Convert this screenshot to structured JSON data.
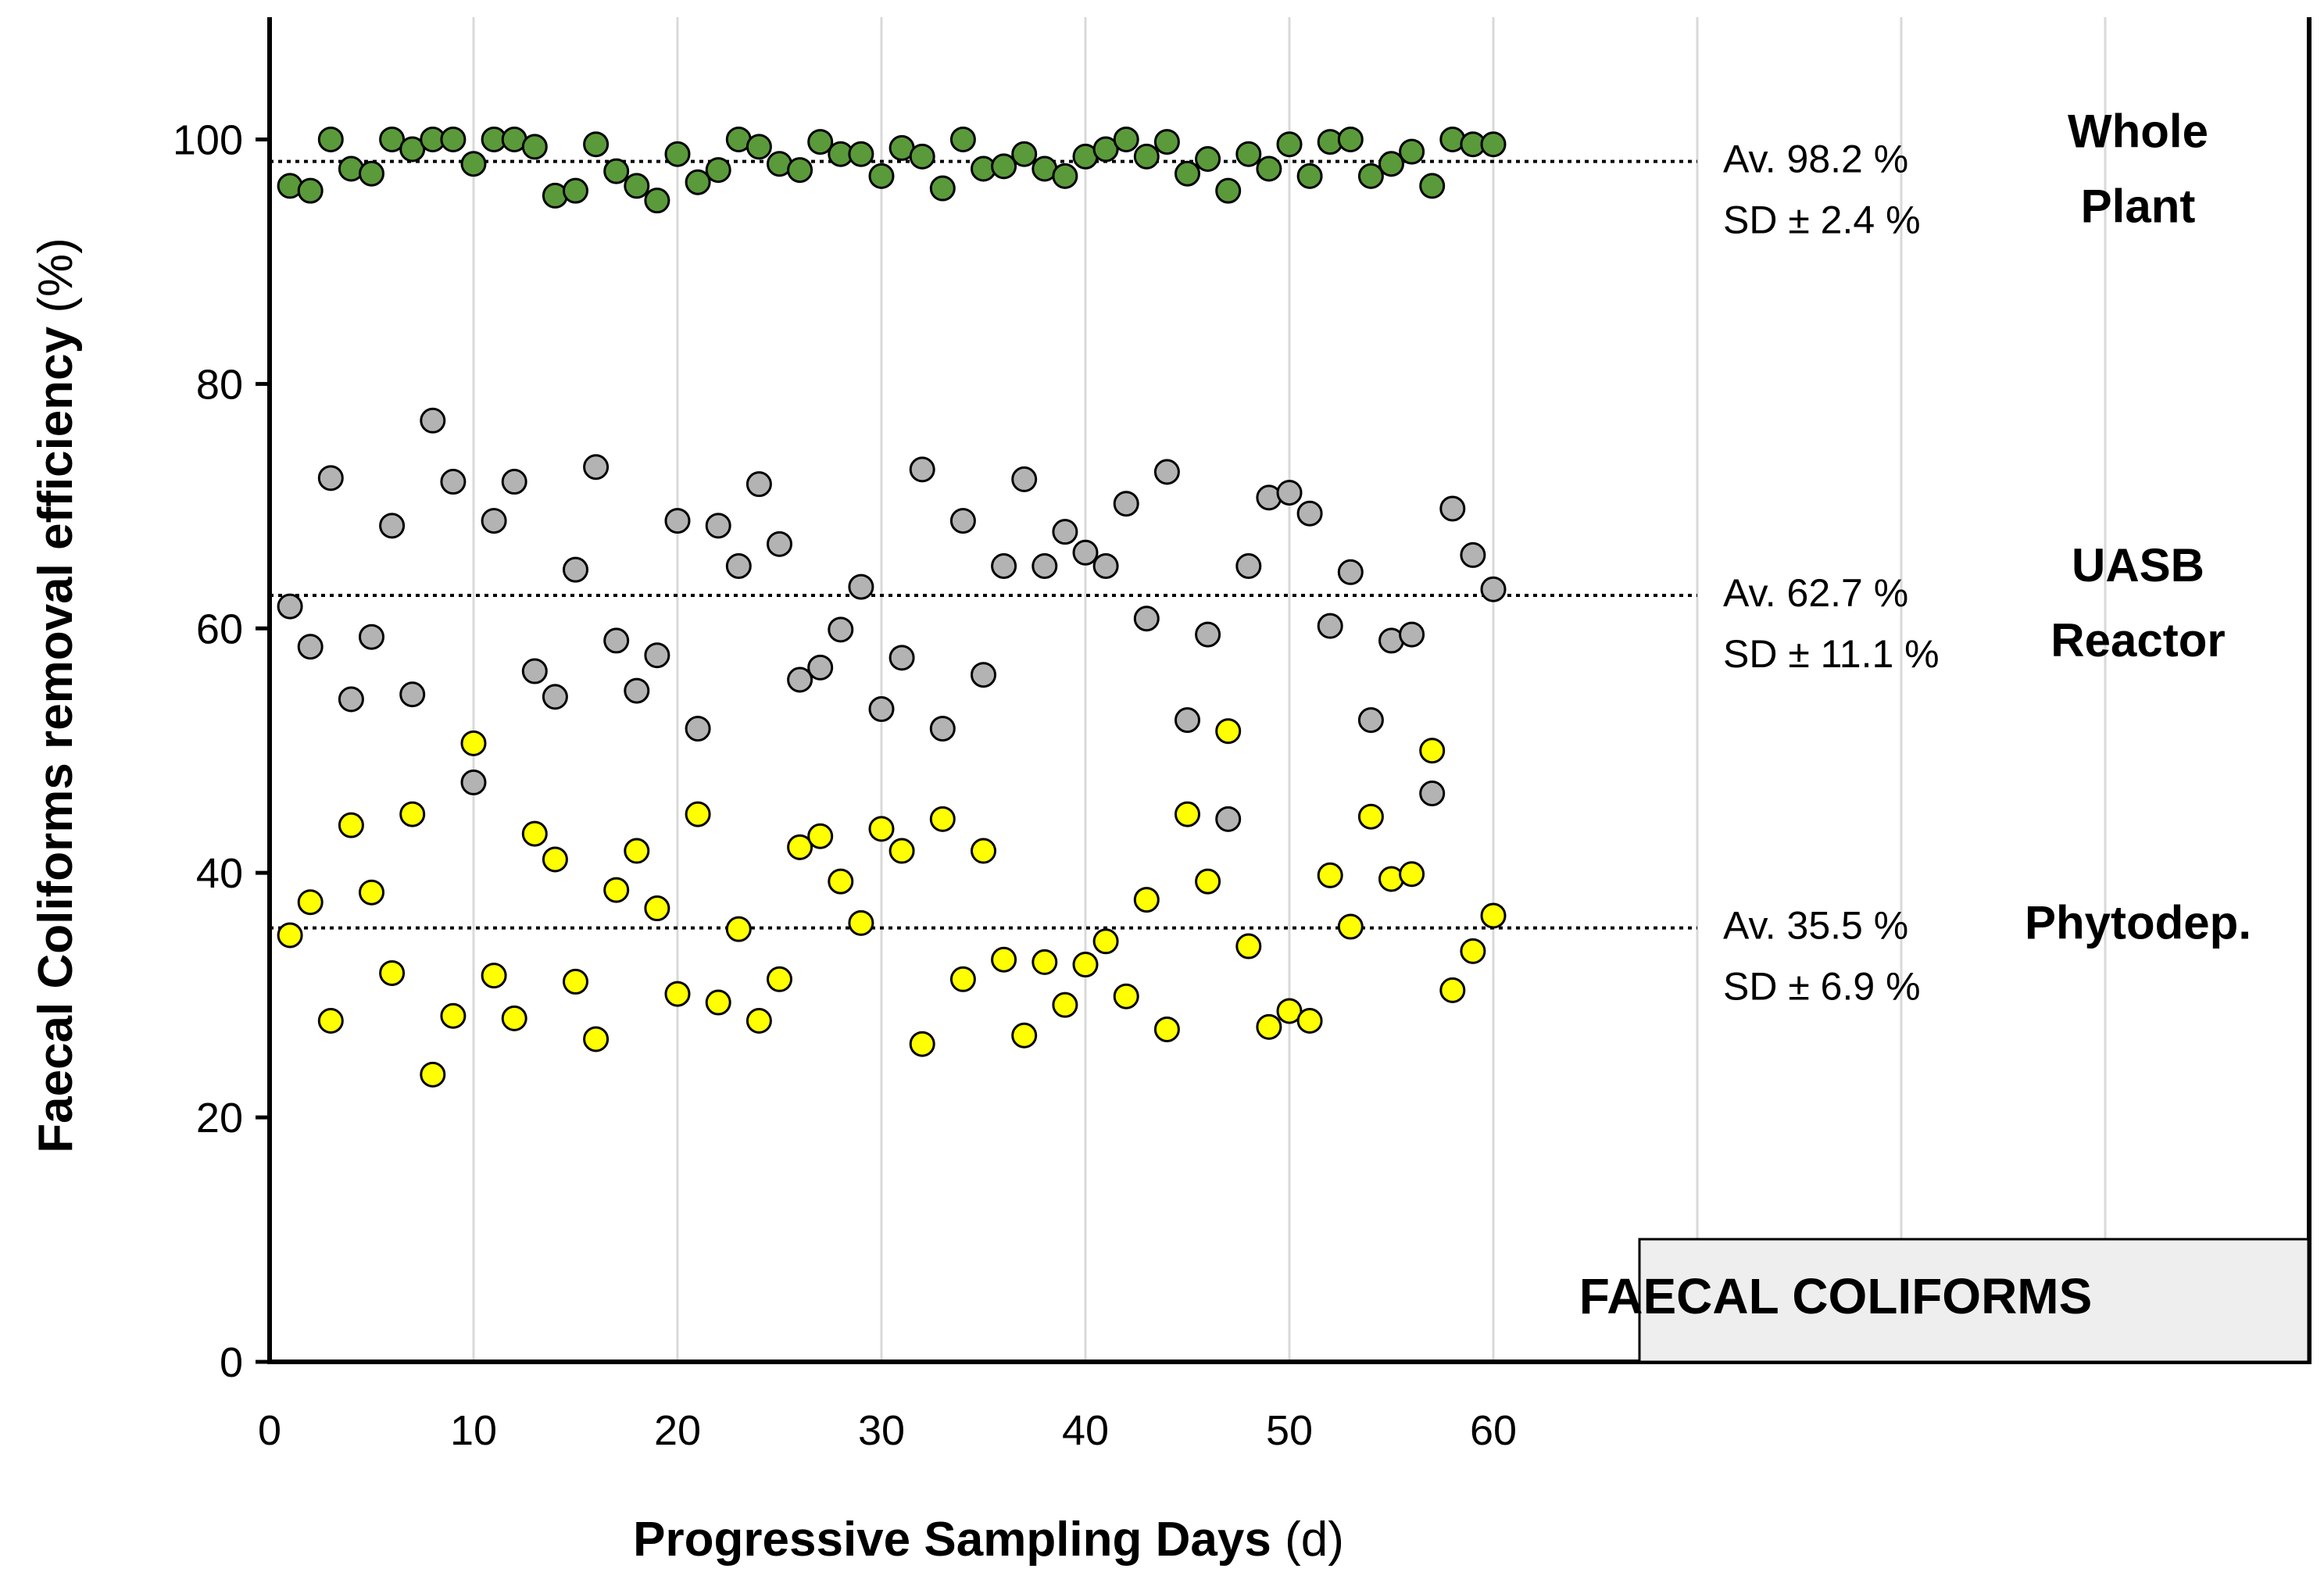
{
  "chart_data": {
    "type": "scatter",
    "title": "FAECAL COLIFORMS",
    "xlabel": "Progressive Sampling Days",
    "xlabel_unit": "(d)",
    "ylabel": "Faecal Coliforms removal efficiency",
    "ylabel_unit": "(%)",
    "xlim": [
      0,
      100
    ],
    "ylim": [
      0,
      110
    ],
    "x_ticks": [
      0,
      10,
      20,
      30,
      40,
      50,
      60
    ],
    "x_gridlines": [
      0,
      10,
      20,
      30,
      40,
      50,
      60,
      70,
      80,
      90,
      100
    ],
    "y_ticks": [
      0,
      20,
      40,
      60,
      80,
      100
    ],
    "colors": {
      "whole_plant": "#5a9a3a",
      "uasb": "#b3b3b3",
      "phytodep": "#ffff00",
      "grid": "#d9d9d9",
      "marker_edge": "#000000"
    },
    "x": [
      1,
      2,
      3,
      4,
      5,
      6,
      7,
      8,
      9,
      10,
      11,
      12,
      13,
      14,
      15,
      16,
      17,
      18,
      19,
      20,
      21,
      22,
      23,
      24,
      25,
      26,
      27,
      28,
      29,
      30,
      31,
      32,
      33,
      34,
      35,
      36,
      37,
      38,
      39,
      40,
      41,
      42,
      43,
      44,
      45,
      46,
      47,
      48,
      49,
      50,
      51,
      52,
      53,
      54,
      55,
      56,
      57,
      58,
      59,
      60
    ],
    "series": [
      {
        "name": "Whole Plant",
        "name_line1": "Whole",
        "name_line2": "Plant",
        "average": 98.2,
        "average_label": "Av.  98.2 %",
        "sd_label": "SD  ± 2.4 %",
        "color": "#5a9a3a",
        "values": [
          96.2,
          95.8,
          100,
          97.6,
          97.2,
          100,
          99.2,
          100,
          100,
          98,
          100,
          100,
          99.4,
          95.4,
          95.8,
          99.6,
          97.4,
          96.2,
          95,
          98.8,
          96.5,
          97.5,
          100,
          99.4,
          98,
          97.5,
          99.8,
          98.8,
          98.8,
          97,
          99.3,
          98.6,
          96,
          100,
          97.6,
          97.8,
          98.8,
          97.6,
          97,
          98.6,
          99.2,
          100,
          98.6,
          99.8,
          97.2,
          98.4,
          95.8,
          98.8,
          97.6,
          99.6,
          97,
          99.8,
          100,
          97,
          98,
          99,
          96.2,
          100,
          99.6,
          99.6
        ]
      },
      {
        "name": "UASB Reactor",
        "name_line1": "UASB",
        "name_line2": "Reactor",
        "average": 62.7,
        "average_label": "Av.  62.7 %",
        "sd_label": "SD  ± 11.1 %",
        "color": "#b3b3b3",
        "values": [
          61.8,
          58.5,
          72.3,
          54.2,
          59.3,
          68.4,
          54.6,
          77,
          72,
          47.4,
          68.8,
          72,
          56.5,
          54.4,
          64.8,
          73.2,
          59,
          54.9,
          57.8,
          68.8,
          51.8,
          68.4,
          65.1,
          71.8,
          66.9,
          55.8,
          56.8,
          59.9,
          63.4,
          53.4,
          57.6,
          73,
          51.8,
          68.8,
          56.2,
          65.1,
          72.2,
          65.1,
          67.9,
          66.2,
          65.1,
          70.2,
          60.8,
          72.8,
          52.5,
          59.5,
          44.4,
          65.1,
          70.7,
          71.1,
          69.4,
          60.2,
          64.6,
          52.5,
          59,
          59.5,
          46.5,
          69.8,
          66,
          63.2
        ]
      },
      {
        "name": "Phytodep.",
        "name_line1": "Phytodep.",
        "average": 35.5,
        "average_label": "Av.  35.5 %",
        "sd_label": "SD  ± 6.9 %",
        "color": "#ffff00",
        "values": [
          34.9,
          37.6,
          27.9,
          43.9,
          38.4,
          31.8,
          44.8,
          23.5,
          28.3,
          50.6,
          31.6,
          28.1,
          43.2,
          41.1,
          31.1,
          26.4,
          38.6,
          41.8,
          37.1,
          30.1,
          44.8,
          29.4,
          35.4,
          27.9,
          31.3,
          42.1,
          43,
          39.3,
          35.9,
          43.6,
          41.8,
          26,
          44.4,
          31.3,
          41.8,
          32.9,
          26.7,
          32.7,
          29.2,
          32.5,
          34.4,
          29.9,
          37.8,
          27.2,
          44.8,
          39.3,
          51.6,
          34,
          27.4,
          28.7,
          27.9,
          39.8,
          35.6,
          44.6,
          39.5,
          39.9,
          50,
          30.4,
          33.6,
          36.5
        ]
      }
    ]
  }
}
